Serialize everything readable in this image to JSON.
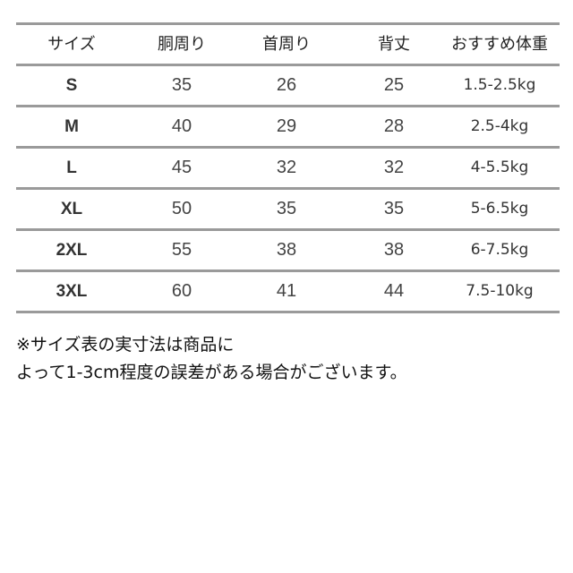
{
  "table": {
    "headers": [
      "サイズ",
      "胴周り",
      "首周り",
      "背丈",
      "おすすめ体重"
    ],
    "rows": [
      [
        "S",
        "35",
        "26",
        "25",
        "1.5-2.5kg"
      ],
      [
        "M",
        "40",
        "29",
        "28",
        "2.5-4kg"
      ],
      [
        "L",
        "45",
        "32",
        "32",
        "4-5.5kg"
      ],
      [
        "XL",
        "50",
        "35",
        "35",
        "5-6.5kg"
      ],
      [
        "2XL",
        "55",
        "38",
        "38",
        "6-7.5kg"
      ],
      [
        "3XL",
        "60",
        "41",
        "44",
        "7.5-10kg"
      ]
    ]
  },
  "note": {
    "line1": "※サイズ表の実寸法は商品に",
    "line2": "よって1-3cm程度の誤差がある場合がございます。"
  }
}
